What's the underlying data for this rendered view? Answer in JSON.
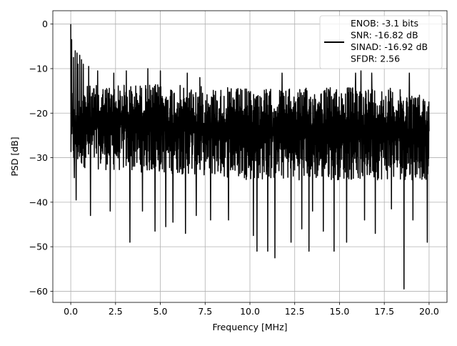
{
  "chart_data": {
    "type": "line",
    "xlabel": "Frequency [MHz]",
    "ylabel": "PSD [dB]",
    "xlim": [
      -1.0,
      21.0
    ],
    "ylim": [
      -62.5,
      3.0
    ],
    "xticks": [
      0.0,
      2.5,
      5.0,
      7.5,
      10.0,
      12.5,
      15.0,
      17.5,
      20.0
    ],
    "xtick_labels": [
      "0.0",
      "2.5",
      "5.0",
      "7.5",
      "10.0",
      "12.5",
      "15.0",
      "17.5",
      "20.0"
    ],
    "yticks": [
      0,
      -10,
      -20,
      -30,
      -40,
      -50,
      -60
    ],
    "ytick_labels": [
      "0",
      "−10",
      "−20",
      "−30",
      "−40",
      "−50",
      "−60"
    ],
    "grid": true,
    "legend_position": "top-right",
    "legend_lines": [
      "ENOB: -3.1 bits",
      "SNR: -16.82 dB",
      "SINAD: -16.92 dB",
      "SFDR: 2.56"
    ],
    "series": [
      {
        "color": "#000000",
        "x_start": 0.0,
        "x_end": 20.0,
        "band_top": [
          [
            0.0,
            -14
          ],
          [
            2.5,
            -13.5
          ],
          [
            5.0,
            -13.5
          ],
          [
            7.5,
            -14
          ],
          [
            10.0,
            -14.5
          ],
          [
            12.5,
            -14.5
          ],
          [
            15.0,
            -14
          ],
          [
            17.5,
            -14
          ],
          [
            20.0,
            -16
          ]
        ],
        "band_bottom": [
          [
            0.0,
            -32
          ],
          [
            2.5,
            -33
          ],
          [
            5.0,
            -33.5
          ],
          [
            7.5,
            -34
          ],
          [
            10.0,
            -35
          ],
          [
            12.5,
            -35
          ],
          [
            15.0,
            -35
          ],
          [
            17.5,
            -35
          ],
          [
            20.0,
            -35
          ]
        ],
        "peaks": [
          [
            0.0,
            0.0
          ],
          [
            0.05,
            -3.5
          ],
          [
            0.15,
            -7.5
          ],
          [
            0.25,
            -6
          ],
          [
            0.3,
            -9
          ],
          [
            0.35,
            -6.5
          ],
          [
            0.4,
            -9
          ],
          [
            0.5,
            -7
          ],
          [
            0.6,
            -8
          ],
          [
            0.7,
            -9
          ],
          [
            1.0,
            -9.5
          ],
          [
            1.5,
            -10.5
          ],
          [
            2.4,
            -11
          ],
          [
            3.1,
            -10.5
          ],
          [
            4.3,
            -10
          ],
          [
            5.0,
            -10.5
          ],
          [
            6.5,
            -11
          ],
          [
            7.2,
            -12
          ],
          [
            10.2,
            -11.5
          ],
          [
            11.8,
            -11
          ],
          [
            15.9,
            -11
          ],
          [
            16.2,
            -10.5
          ],
          [
            16.8,
            -11
          ],
          [
            18.9,
            -11
          ],
          [
            19.9,
            -12
          ]
        ],
        "dips": [
          [
            0.2,
            -34.5
          ],
          [
            0.3,
            -39.5
          ],
          [
            1.1,
            -43
          ],
          [
            2.2,
            -42
          ],
          [
            3.3,
            -49
          ],
          [
            4.0,
            -42
          ],
          [
            4.7,
            -46.5
          ],
          [
            5.3,
            -45.5
          ],
          [
            5.7,
            -44.5
          ],
          [
            6.4,
            -47
          ],
          [
            7.0,
            -43
          ],
          [
            7.8,
            -44
          ],
          [
            8.8,
            -44
          ],
          [
            10.2,
            -47.5
          ],
          [
            10.4,
            -51
          ],
          [
            11.0,
            -51
          ],
          [
            11.4,
            -52.5
          ],
          [
            12.3,
            -49
          ],
          [
            12.9,
            -46
          ],
          [
            13.3,
            -51
          ],
          [
            13.5,
            -42
          ],
          [
            14.1,
            -46.5
          ],
          [
            14.7,
            -51
          ],
          [
            15.4,
            -49
          ],
          [
            16.4,
            -44
          ],
          [
            17.0,
            -47
          ],
          [
            17.9,
            -41.5
          ],
          [
            18.6,
            -59.5
          ],
          [
            19.1,
            -44
          ],
          [
            19.9,
            -49
          ]
        ]
      }
    ]
  }
}
